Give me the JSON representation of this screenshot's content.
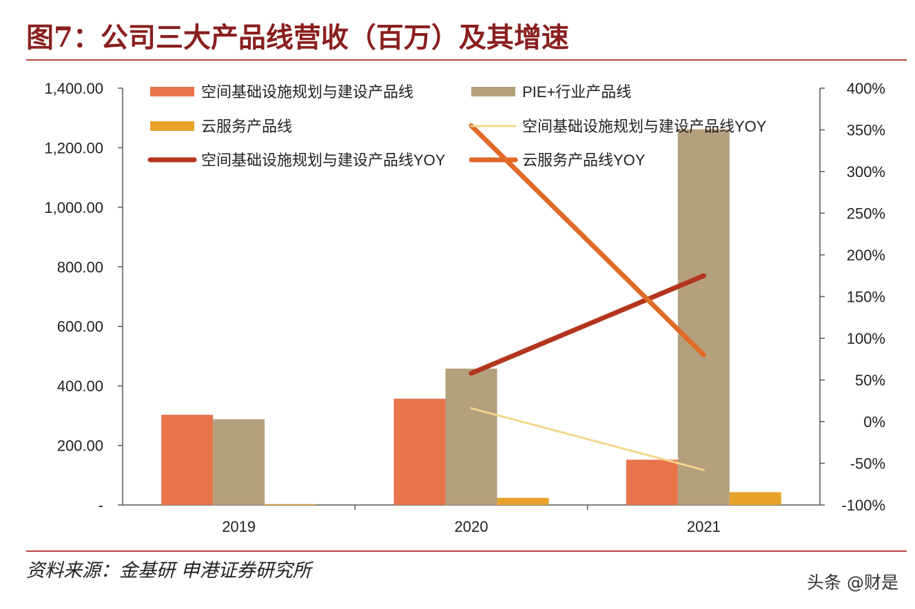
{
  "figure_title": "图7：公司三大产品线营收（百万）及其增速",
  "source": "资料来源：金基研 申港证券研究所",
  "watermark": "头条 @财是",
  "colors": {
    "spatial": "#e8744c",
    "pie": "#b5a07d",
    "cloud": "#e8a22a",
    "spatial_yoy": "#b2351e",
    "cloud_yoy": "#e06a28",
    "pie_yoy": "#f4d58a",
    "title": "#8a1f1f",
    "rule": "#b8433a"
  },
  "chart_data": {
    "type": "bar",
    "title": "公司三大产品线营收（百万）及其增速",
    "categories": [
      "2019",
      "2020",
      "2021"
    ],
    "y_left": {
      "range": [
        0,
        1400
      ],
      "ticks": [
        0,
        200,
        400,
        600,
        800,
        1000,
        1200,
        1400
      ],
      "tick_labels": [
        "-",
        "200.00",
        "400.00",
        "600.00",
        "800.00",
        "1,000.00",
        "1,200.00",
        "1,400.00"
      ]
    },
    "y_right": {
      "range": [
        -100,
        400
      ],
      "ticks": [
        -100,
        -50,
        0,
        50,
        100,
        150,
        200,
        250,
        300,
        350,
        400
      ],
      "tick_labels": [
        "-100%",
        "-50%",
        "0%",
        "50%",
        "100%",
        "150%",
        "200%",
        "250%",
        "300%",
        "350%",
        "400%"
      ]
    },
    "bar_series": [
      {
        "name": "空间基础设施规划与建设产品线",
        "color_key": "spatial",
        "values": [
          303,
          357,
          152
        ]
      },
      {
        "name": "PIE+行业产品线",
        "color_key": "pie",
        "values": [
          288,
          458,
          1262
        ]
      },
      {
        "name": "云服务产品线",
        "color_key": "cloud",
        "values": [
          3,
          24,
          43
        ]
      }
    ],
    "line_series": [
      {
        "name": "空间基础设施规划与建设产品线YOY",
        "legend_name": "空间基础设施规划与建设产品线YOY",
        "color_key": "pie_yoy",
        "axis": "right",
        "width": 3,
        "values": [
          null,
          16,
          -58
        ]
      },
      {
        "name": "空间基础设施规划与建设产品线YOY",
        "legend_name": "空间基础设施规划与建设产品线YOY",
        "color_key": "spatial_yoy",
        "axis": "right",
        "width": 7,
        "values": [
          null,
          58,
          175
        ]
      },
      {
        "name": "云服务产品线YOY",
        "legend_name": "云服务产品线YOY",
        "color_key": "cloud_yoy",
        "axis": "right",
        "width": 7,
        "values": [
          null,
          355,
          80
        ]
      }
    ],
    "legend_position": "top"
  }
}
